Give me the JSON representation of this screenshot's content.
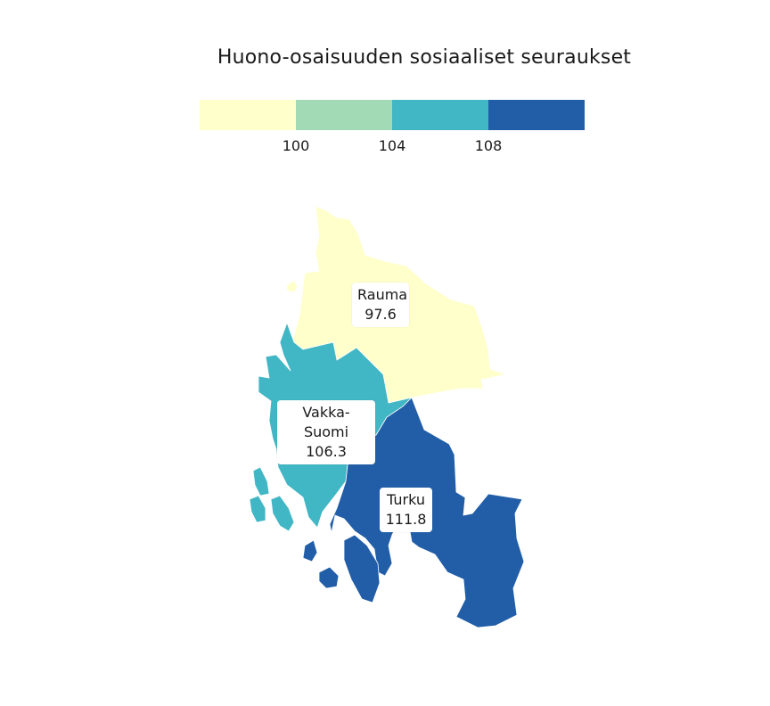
{
  "title": "Huono-osaisuuden sosiaaliset seuraukset",
  "legend": {
    "colors": [
      "#ffffcc",
      "#a1dab4",
      "#41b6c4",
      "#225ea8"
    ],
    "breaks": [
      "100",
      "104",
      "108"
    ]
  },
  "regions": [
    {
      "name": "Rauma",
      "value": "97.6",
      "color": "#ffffcc"
    },
    {
      "name": "Vakka-Suomi",
      "value": "106.3",
      "color": "#41b6c4"
    },
    {
      "name": "Turku",
      "value": "111.8",
      "color": "#225ea8"
    }
  ]
}
